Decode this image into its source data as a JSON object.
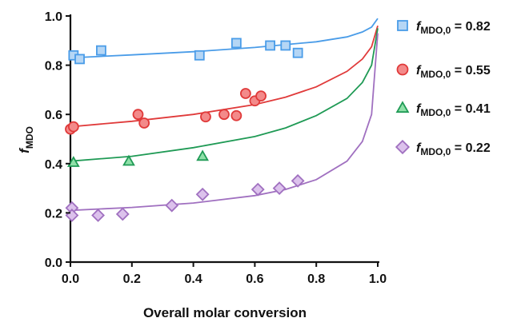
{
  "chart_data": {
    "type": "scatter",
    "xlabel": "Overall molar conversion",
    "ylabel_main": "f",
    "ylabel_sub": "MDO",
    "xlim": [
      0.0,
      1.0
    ],
    "ylim": [
      0.0,
      1.0
    ],
    "x_ticks": [
      "0.0",
      "0.2",
      "0.4",
      "0.6",
      "0.8",
      "1.0"
    ],
    "y_ticks": [
      "0.0",
      "0.2",
      "0.4",
      "0.6",
      "0.8",
      "1.0"
    ],
    "legend_position": "right",
    "series": [
      {
        "legend_main": "f",
        "legend_sub": "MDO,0",
        "legend_value": " = 0.82",
        "marker": "square",
        "color": "#4a9ce8",
        "fill": "#b5d6f5",
        "points": [
          [
            0.01,
            0.84
          ],
          [
            0.03,
            0.825
          ],
          [
            0.1,
            0.86
          ],
          [
            0.42,
            0.84
          ],
          [
            0.54,
            0.89
          ],
          [
            0.65,
            0.88
          ],
          [
            0.7,
            0.88
          ],
          [
            0.74,
            0.85
          ]
        ],
        "fit": [
          [
            0.0,
            0.83
          ],
          [
            0.2,
            0.842
          ],
          [
            0.4,
            0.855
          ],
          [
            0.6,
            0.872
          ],
          [
            0.8,
            0.895
          ],
          [
            0.9,
            0.915
          ],
          [
            0.95,
            0.935
          ],
          [
            0.98,
            0.955
          ],
          [
            1.0,
            0.99
          ]
        ]
      },
      {
        "legend_main": "f",
        "legend_sub": "MDO,0",
        "legend_value": " = 0.55",
        "marker": "circle",
        "color": "#e03a3a",
        "fill": "#f38a8a",
        "points": [
          [
            0.0,
            0.54
          ],
          [
            0.01,
            0.55
          ],
          [
            0.22,
            0.6
          ],
          [
            0.24,
            0.565
          ],
          [
            0.44,
            0.59
          ],
          [
            0.5,
            0.6
          ],
          [
            0.54,
            0.595
          ],
          [
            0.57,
            0.685
          ],
          [
            0.6,
            0.655
          ],
          [
            0.62,
            0.675
          ]
        ],
        "fit": [
          [
            0.0,
            0.55
          ],
          [
            0.2,
            0.572
          ],
          [
            0.4,
            0.6
          ],
          [
            0.6,
            0.64
          ],
          [
            0.7,
            0.67
          ],
          [
            0.8,
            0.712
          ],
          [
            0.9,
            0.775
          ],
          [
            0.95,
            0.825
          ],
          [
            0.98,
            0.875
          ],
          [
            1.0,
            0.96
          ]
        ]
      },
      {
        "legend_main": "f",
        "legend_sub": "MDO,0",
        "legend_value": " = 0.41",
        "marker": "triangle",
        "color": "#1f9a55",
        "fill": "#8fe0a8",
        "points": [
          [
            0.01,
            0.405
          ],
          [
            0.19,
            0.41
          ],
          [
            0.43,
            0.43
          ]
        ],
        "fit": [
          [
            0.0,
            0.41
          ],
          [
            0.2,
            0.43
          ],
          [
            0.4,
            0.465
          ],
          [
            0.6,
            0.51
          ],
          [
            0.7,
            0.545
          ],
          [
            0.8,
            0.595
          ],
          [
            0.9,
            0.665
          ],
          [
            0.95,
            0.73
          ],
          [
            0.98,
            0.8
          ],
          [
            1.0,
            0.95
          ]
        ]
      },
      {
        "legend_main": "f",
        "legend_sub": "MDO,0",
        "legend_value": " = 0.22",
        "marker": "diamond",
        "color": "#a070c0",
        "fill": "#dcc2ec",
        "points": [
          [
            0.005,
            0.22
          ],
          [
            0.005,
            0.19
          ],
          [
            0.09,
            0.19
          ],
          [
            0.17,
            0.195
          ],
          [
            0.33,
            0.23
          ],
          [
            0.43,
            0.275
          ],
          [
            0.61,
            0.295
          ],
          [
            0.68,
            0.3
          ],
          [
            0.74,
            0.33
          ]
        ],
        "fit": [
          [
            0.0,
            0.21
          ],
          [
            0.2,
            0.222
          ],
          [
            0.4,
            0.24
          ],
          [
            0.6,
            0.27
          ],
          [
            0.7,
            0.295
          ],
          [
            0.8,
            0.335
          ],
          [
            0.9,
            0.41
          ],
          [
            0.95,
            0.49
          ],
          [
            0.98,
            0.6
          ],
          [
            1.0,
            0.93
          ]
        ]
      }
    ]
  }
}
